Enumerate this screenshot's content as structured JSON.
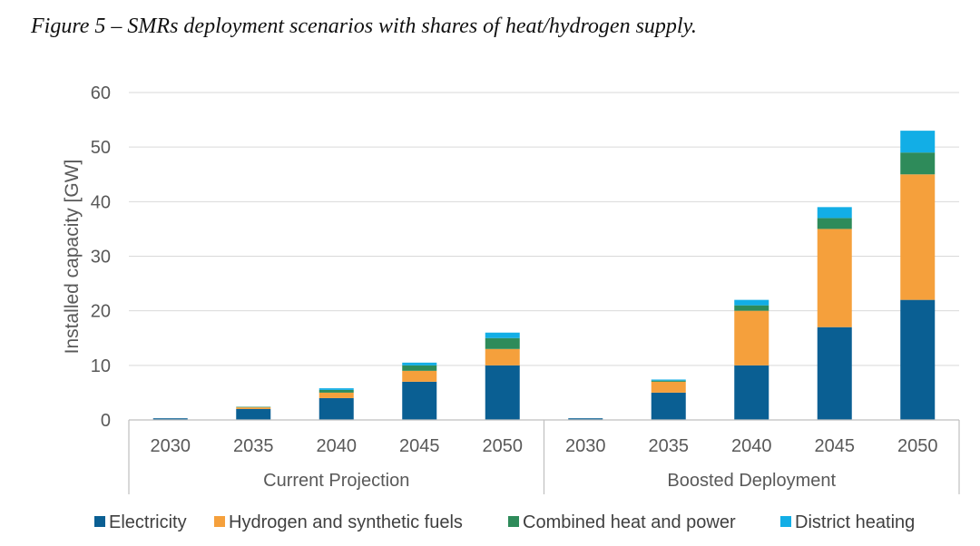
{
  "caption": "Figure 5 – SMRs deployment scenarios with shares of heat/hydrogen supply.",
  "chart_data": {
    "type": "bar",
    "stacked": true,
    "title": "",
    "xlabel": "",
    "ylabel": "Installed capacity [GW]",
    "ylim": [
      0,
      60
    ],
    "yticks": [
      0,
      10,
      20,
      30,
      40,
      50,
      60
    ],
    "grid": true,
    "legend_position": "bottom",
    "groups": [
      {
        "label": "Current Projection",
        "categories": [
          "2030",
          "2035",
          "2040",
          "2045",
          "2050"
        ]
      },
      {
        "label": "Boosted Deployment",
        "categories": [
          "2030",
          "2035",
          "2040",
          "2045",
          "2050"
        ]
      }
    ],
    "series": [
      {
        "name": "Electricity",
        "color": "#0a5f93",
        "values": [
          0.3,
          2,
          4,
          7,
          10,
          0.3,
          5,
          10,
          17,
          22
        ]
      },
      {
        "name": "Hydrogen and synthetic fuels",
        "color": "#f5a03c",
        "values": [
          0,
          0.3,
          1,
          2,
          3,
          0,
          2,
          10,
          18,
          23
        ]
      },
      {
        "name": "Combined heat and power",
        "color": "#2e8b5a",
        "values": [
          0,
          0.1,
          0.5,
          1,
          2,
          0,
          0.2,
          1,
          2,
          4
        ]
      },
      {
        "name": "District heating",
        "color": "#12aee6",
        "values": [
          0,
          0,
          0.3,
          0.5,
          1,
          0,
          0.2,
          1,
          2,
          4
        ]
      }
    ]
  }
}
